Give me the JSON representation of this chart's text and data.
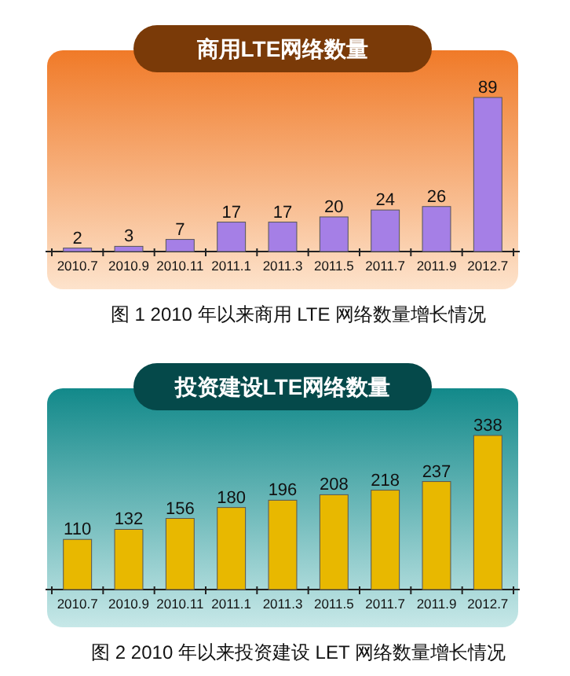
{
  "chart_data": [
    {
      "type": "bar",
      "title": "商用LTE网络数量",
      "categories": [
        "2010.7",
        "2010.9",
        "2010.11",
        "2011.1",
        "2011.3",
        "2011.5",
        "2011.7",
        "2011.9",
        "2012.7"
      ],
      "series": [
        {
          "color": "#a57fe6",
          "values": [
            2,
            3,
            7,
            17,
            17,
            20,
            24,
            26,
            89
          ]
        }
      ],
      "data_labels": true,
      "annotations": [
        "图 1 2010 年以来商用 LTE 网络数量增长情况"
      ]
    },
    {
      "type": "bar",
      "title": "投资建设LTE网络数量",
      "categories": [
        "2010.7",
        "2010.9",
        "2010.11",
        "2011.1",
        "2011.3",
        "2011.5",
        "2011.7",
        "2011.9",
        "2012.7"
      ],
      "series": [
        {
          "color": "#e8b800",
          "values": [
            110,
            132,
            156,
            180,
            196,
            208,
            218,
            237,
            338
          ]
        }
      ],
      "data_labels": true,
      "annotations": [
        "图 2 2010 年以来投资建设 LET 网络数量增长情况"
      ]
    }
  ]
}
